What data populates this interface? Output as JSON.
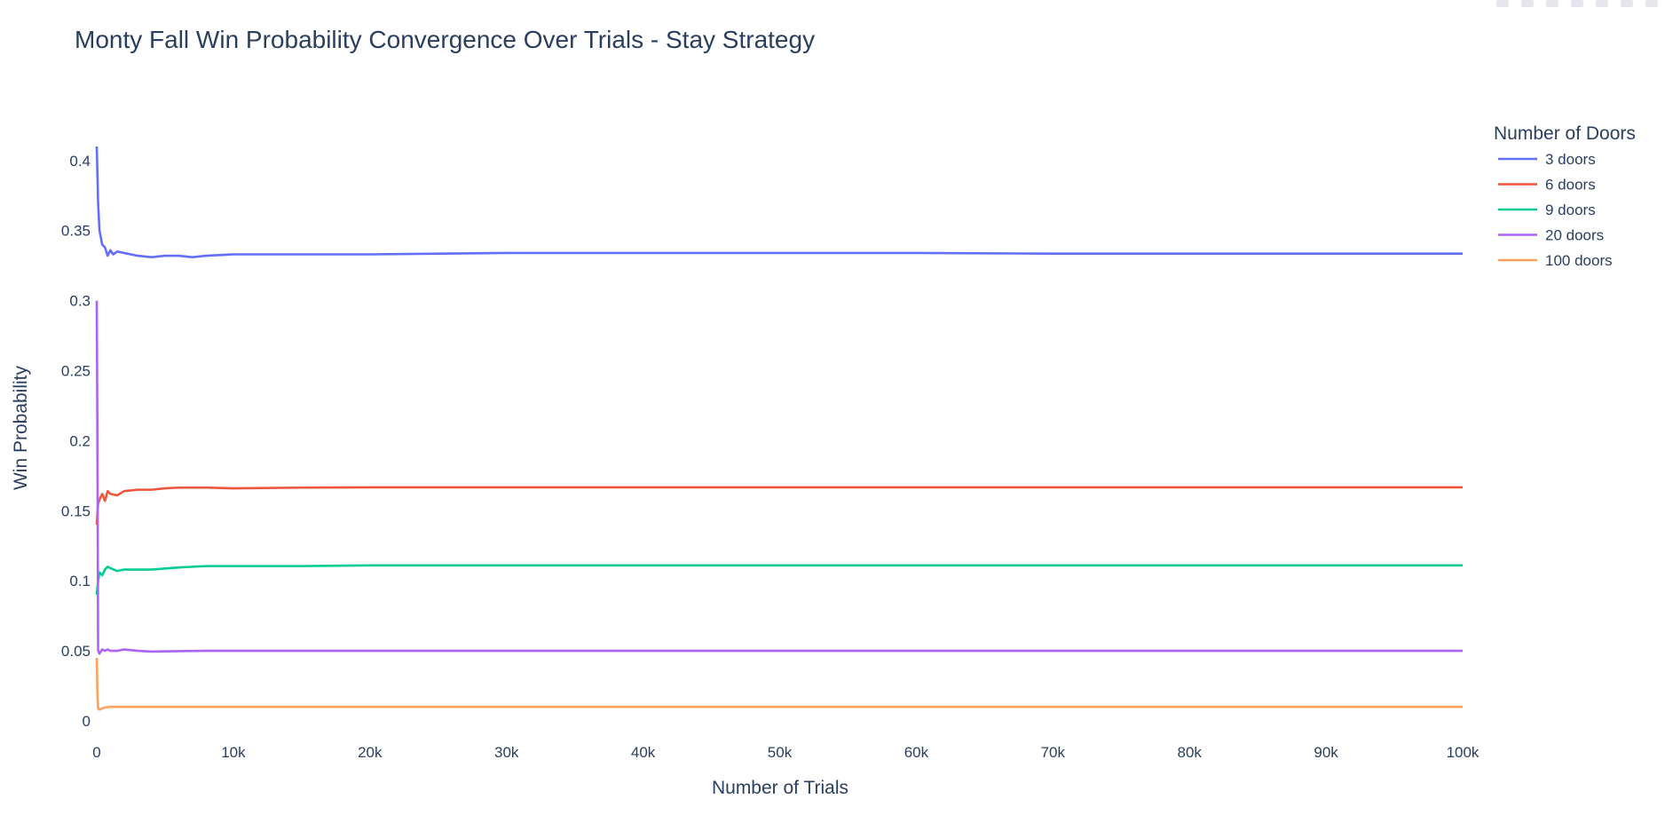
{
  "chart_data": {
    "type": "line",
    "title": "Monty Fall Win Probability Convergence Over Trials - Stay Strategy",
    "xlabel": "Number of Trials",
    "ylabel": "Win Probability",
    "xlim": [
      0,
      100000
    ],
    "ylim": [
      0,
      0.41
    ],
    "x_ticks": [
      0,
      10000,
      20000,
      30000,
      40000,
      50000,
      60000,
      70000,
      80000,
      90000,
      100000
    ],
    "x_tick_labels": [
      "0",
      "10k",
      "20k",
      "30k",
      "40k",
      "50k",
      "60k",
      "70k",
      "80k",
      "90k",
      "100k"
    ],
    "y_ticks": [
      0,
      0.05,
      0.1,
      0.15,
      0.2,
      0.25,
      0.3,
      0.35,
      0.4
    ],
    "y_tick_labels": [
      "0",
      "0.05",
      "0.1",
      "0.15",
      "0.2",
      "0.25",
      "0.3",
      "0.35",
      "0.4"
    ],
    "grid": false,
    "legend_title": "Number of Doors",
    "legend_position": "right",
    "series": [
      {
        "name": "3 doors",
        "color": "#636efa",
        "x": [
          1,
          100,
          200,
          400,
          600,
          800,
          1000,
          1200,
          1500,
          2000,
          3000,
          4000,
          5000,
          6000,
          7000,
          8000,
          10000,
          15000,
          20000,
          30000,
          40000,
          50000,
          60000,
          70000,
          80000,
          90000,
          100000
        ],
        "y": [
          0.41,
          0.37,
          0.35,
          0.34,
          0.338,
          0.332,
          0.336,
          0.333,
          0.335,
          0.334,
          0.332,
          0.331,
          0.332,
          0.332,
          0.331,
          0.332,
          0.333,
          0.333,
          0.333,
          0.334,
          0.334,
          0.334,
          0.334,
          0.3335,
          0.3335,
          0.3335,
          0.3335
        ]
      },
      {
        "name": "6 doors",
        "color": "#ef553b",
        "x": [
          1,
          100,
          200,
          400,
          600,
          800,
          1000,
          1500,
          2000,
          3000,
          4000,
          5000,
          6000,
          8000,
          10000,
          15000,
          20000,
          30000,
          50000,
          70000,
          100000
        ],
        "y": [
          0.14,
          0.155,
          0.158,
          0.162,
          0.157,
          0.164,
          0.162,
          0.161,
          0.164,
          0.165,
          0.165,
          0.166,
          0.1665,
          0.1665,
          0.166,
          0.1665,
          0.1667,
          0.1667,
          0.1667,
          0.1667,
          0.1667
        ]
      },
      {
        "name": "9 doors",
        "color": "#00cc96",
        "x": [
          1,
          100,
          200,
          400,
          600,
          800,
          1000,
          1500,
          2000,
          3000,
          4000,
          6000,
          8000,
          10000,
          15000,
          20000,
          30000,
          50000,
          70000,
          100000
        ],
        "y": [
          0.09,
          0.1,
          0.106,
          0.104,
          0.108,
          0.11,
          0.109,
          0.107,
          0.108,
          0.108,
          0.108,
          0.1095,
          0.1105,
          0.1105,
          0.1105,
          0.111,
          0.111,
          0.111,
          0.111,
          0.111
        ]
      },
      {
        "name": "20 doors",
        "color": "#ab63fa",
        "x": [
          1,
          50,
          100,
          200,
          400,
          600,
          800,
          1000,
          1500,
          2000,
          3000,
          4000,
          6000,
          8000,
          10000,
          20000,
          30000,
          50000,
          70000,
          100000
        ],
        "y": [
          0.3,
          0.2,
          0.05,
          0.048,
          0.051,
          0.05,
          0.051,
          0.05,
          0.05,
          0.051,
          0.05,
          0.0495,
          0.0498,
          0.05,
          0.05,
          0.05,
          0.05,
          0.05,
          0.05,
          0.05
        ]
      },
      {
        "name": "100 doors",
        "color": "#ffa15a",
        "x": [
          1,
          50,
          100,
          200,
          400,
          600,
          1000,
          2000,
          5000,
          10000,
          20000,
          50000,
          100000
        ],
        "y": [
          0.045,
          0.02,
          0.009,
          0.008,
          0.009,
          0.0095,
          0.01,
          0.01,
          0.01,
          0.01,
          0.01,
          0.01,
          0.01
        ]
      }
    ]
  }
}
